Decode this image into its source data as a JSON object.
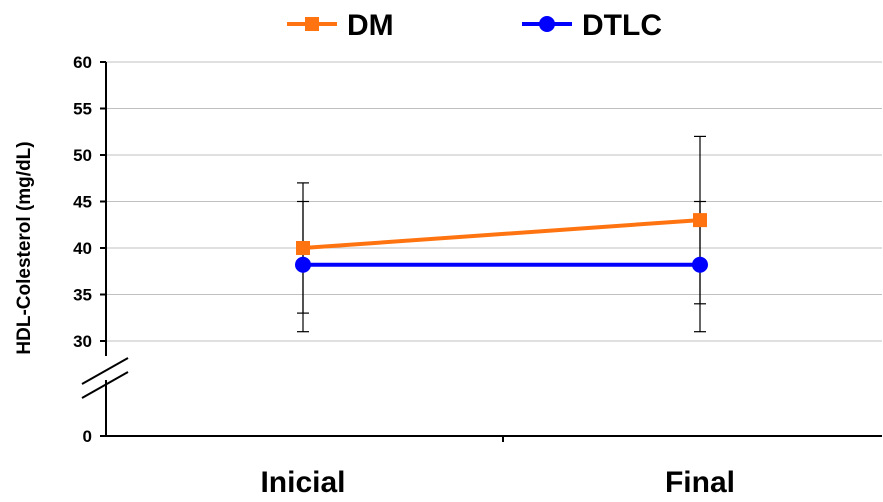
{
  "chart_data": {
    "type": "line",
    "ylabel": "HDL-Colesterol (mg/dL)",
    "xlabel": "",
    "categories": [
      "Inicial",
      "Final"
    ],
    "ylim": [
      30,
      60
    ],
    "yticks": [
      0,
      30,
      35,
      40,
      45,
      50,
      55,
      60
    ],
    "y_axis_break": true,
    "grid": true,
    "legend_position": "top-center",
    "series": [
      {
        "name": "DM",
        "color": "#ff7410",
        "marker": "square",
        "values": [
          40,
          43
        ],
        "error_upper": [
          47,
          52
        ],
        "error_lower": [
          33,
          34
        ]
      },
      {
        "name": "DTLC",
        "color": "#0000ff",
        "marker": "circle",
        "values": [
          38.2,
          38.2
        ],
        "error_upper": [
          45,
          45
        ],
        "error_lower": [
          31,
          31
        ]
      }
    ]
  }
}
